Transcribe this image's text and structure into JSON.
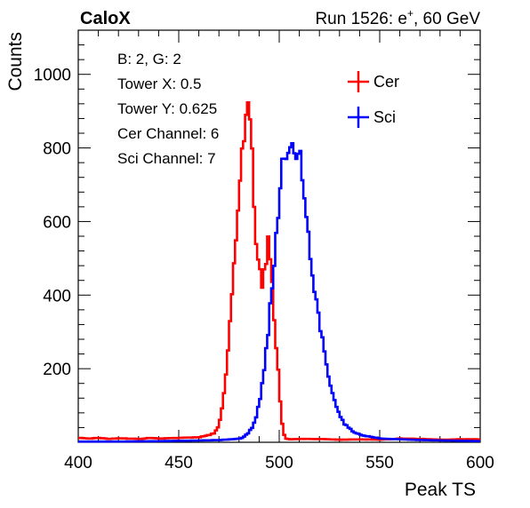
{
  "chart_data": {
    "type": "line",
    "title_left": "CaloX",
    "title_right": "Run 1526: e",
    "title_right_sup": "+",
    "title_right_suffix": ", 60 GeV",
    "xlabel": "Peak TS",
    "ylabel": "Counts",
    "xlim": [
      400,
      600
    ],
    "ylim": [
      0,
      1120
    ],
    "x_ticks": [
      400,
      450,
      500,
      550,
      600
    ],
    "y_ticks": [
      200,
      400,
      600,
      800,
      1000
    ],
    "info_lines": [
      "B: 2, G: 2",
      "Tower X: 0.5",
      "Tower Y: 0.625",
      "Cer Channel: 6",
      "Sci Channel: 7"
    ],
    "legend_position": "top-right",
    "series": [
      {
        "name": "Cer",
        "color": "#ff0000",
        "x": [
          400,
          405,
          410,
          415,
          420,
          425,
          430,
          435,
          440,
          445,
          450,
          455,
          460,
          465,
          467,
          469,
          470,
          471,
          472,
          473,
          474,
          475,
          476,
          477,
          478,
          479,
          480,
          481,
          482,
          483,
          484,
          485,
          486,
          487,
          488,
          489,
          490,
          491,
          492,
          493,
          494,
          495,
          496,
          497,
          498,
          499,
          500,
          501,
          502,
          503,
          505,
          510,
          520,
          530,
          540,
          550,
          560,
          570,
          580,
          590,
          600
        ],
        "y": [
          12,
          10,
          12,
          9,
          11,
          10,
          9,
          12,
          10,
          11,
          12,
          13,
          14,
          20,
          25,
          40,
          60,
          90,
          130,
          180,
          250,
          320,
          400,
          480,
          560,
          630,
          700,
          780,
          850,
          890,
          895,
          860,
          780,
          650,
          540,
          480,
          460,
          430,
          470,
          480,
          540,
          500,
          420,
          330,
          260,
          190,
          110,
          50,
          20,
          10,
          8,
          9,
          9,
          7,
          8,
          7,
          10,
          9,
          7,
          8,
          8
        ]
      },
      {
        "name": "Sci",
        "color": "#0000ff",
        "x": [
          400,
          420,
          440,
          450,
          460,
          470,
          475,
          480,
          482,
          484,
          486,
          488,
          490,
          492,
          494,
          495,
          496,
          497,
          498,
          499,
          500,
          501,
          502,
          503,
          504,
          505,
          506,
          507,
          508,
          509,
          510,
          511,
          512,
          513,
          514,
          515,
          516,
          518,
          520,
          522,
          524,
          526,
          528,
          530,
          532,
          534,
          536,
          538,
          540,
          545,
          550,
          560,
          570,
          580,
          590,
          600
        ],
        "y": [
          2,
          2,
          3,
          4,
          5,
          6,
          8,
          10,
          15,
          25,
          40,
          70,
          120,
          200,
          300,
          380,
          430,
          480,
          560,
          630,
          700,
          750,
          790,
          780,
          760,
          820,
          800,
          780,
          770,
          760,
          770,
          710,
          650,
          620,
          560,
          500,
          440,
          380,
          310,
          240,
          180,
          130,
          100,
          70,
          50,
          40,
          30,
          25,
          20,
          15,
          10,
          8,
          6,
          5,
          4,
          3
        ]
      }
    ]
  }
}
